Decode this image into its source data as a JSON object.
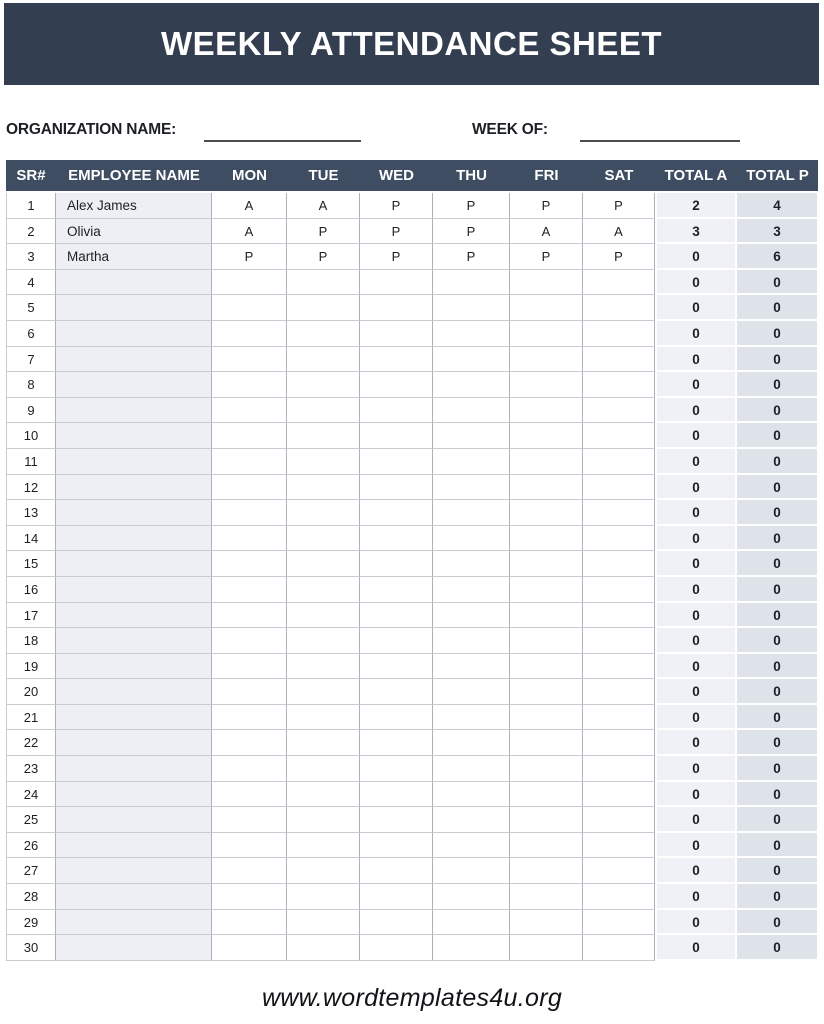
{
  "title": "WEEKLY ATTENDANCE SHEET",
  "form": {
    "org_label": "ORGANIZATION NAME:",
    "org_value": "",
    "week_label": "WEEK OF:",
    "week_value": ""
  },
  "table": {
    "headers": [
      "SR#",
      "EMPLOYEE NAME",
      "MON",
      "TUE",
      "WED",
      "THU",
      "FRI",
      "SAT",
      "TOTAL A",
      "TOTAL P"
    ],
    "rows": [
      {
        "sr": "1",
        "name": "Alex James",
        "days": [
          "A",
          "A",
          "P",
          "P",
          "P",
          "P"
        ],
        "total_a": "2",
        "total_p": "4"
      },
      {
        "sr": "2",
        "name": "Olivia",
        "days": [
          "A",
          "P",
          "P",
          "P",
          "A",
          "A"
        ],
        "total_a": "3",
        "total_p": "3"
      },
      {
        "sr": "3",
        "name": "Martha",
        "days": [
          "P",
          "P",
          "P",
          "P",
          "P",
          "P"
        ],
        "total_a": "0",
        "total_p": "6"
      },
      {
        "sr": "4",
        "name": "",
        "days": [
          "",
          "",
          "",
          "",
          "",
          ""
        ],
        "total_a": "0",
        "total_p": "0"
      },
      {
        "sr": "5",
        "name": "",
        "days": [
          "",
          "",
          "",
          "",
          "",
          ""
        ],
        "total_a": "0",
        "total_p": "0"
      },
      {
        "sr": "6",
        "name": "",
        "days": [
          "",
          "",
          "",
          "",
          "",
          ""
        ],
        "total_a": "0",
        "total_p": "0"
      },
      {
        "sr": "7",
        "name": "",
        "days": [
          "",
          "",
          "",
          "",
          "",
          ""
        ],
        "total_a": "0",
        "total_p": "0"
      },
      {
        "sr": "8",
        "name": "",
        "days": [
          "",
          "",
          "",
          "",
          "",
          ""
        ],
        "total_a": "0",
        "total_p": "0"
      },
      {
        "sr": "9",
        "name": "",
        "days": [
          "",
          "",
          "",
          "",
          "",
          ""
        ],
        "total_a": "0",
        "total_p": "0"
      },
      {
        "sr": "10",
        "name": "",
        "days": [
          "",
          "",
          "",
          "",
          "",
          ""
        ],
        "total_a": "0",
        "total_p": "0"
      },
      {
        "sr": "11",
        "name": "",
        "days": [
          "",
          "",
          "",
          "",
          "",
          ""
        ],
        "total_a": "0",
        "total_p": "0"
      },
      {
        "sr": "12",
        "name": "",
        "days": [
          "",
          "",
          "",
          "",
          "",
          ""
        ],
        "total_a": "0",
        "total_p": "0"
      },
      {
        "sr": "13",
        "name": "",
        "days": [
          "",
          "",
          "",
          "",
          "",
          ""
        ],
        "total_a": "0",
        "total_p": "0"
      },
      {
        "sr": "14",
        "name": "",
        "days": [
          "",
          "",
          "",
          "",
          "",
          ""
        ],
        "total_a": "0",
        "total_p": "0"
      },
      {
        "sr": "15",
        "name": "",
        "days": [
          "",
          "",
          "",
          "",
          "",
          ""
        ],
        "total_a": "0",
        "total_p": "0"
      },
      {
        "sr": "16",
        "name": "",
        "days": [
          "",
          "",
          "",
          "",
          "",
          ""
        ],
        "total_a": "0",
        "total_p": "0"
      },
      {
        "sr": "17",
        "name": "",
        "days": [
          "",
          "",
          "",
          "",
          "",
          ""
        ],
        "total_a": "0",
        "total_p": "0"
      },
      {
        "sr": "18",
        "name": "",
        "days": [
          "",
          "",
          "",
          "",
          "",
          ""
        ],
        "total_a": "0",
        "total_p": "0"
      },
      {
        "sr": "19",
        "name": "",
        "days": [
          "",
          "",
          "",
          "",
          "",
          ""
        ],
        "total_a": "0",
        "total_p": "0"
      },
      {
        "sr": "20",
        "name": "",
        "days": [
          "",
          "",
          "",
          "",
          "",
          ""
        ],
        "total_a": "0",
        "total_p": "0"
      },
      {
        "sr": "21",
        "name": "",
        "days": [
          "",
          "",
          "",
          "",
          "",
          ""
        ],
        "total_a": "0",
        "total_p": "0"
      },
      {
        "sr": "22",
        "name": "",
        "days": [
          "",
          "",
          "",
          "",
          "",
          ""
        ],
        "total_a": "0",
        "total_p": "0"
      },
      {
        "sr": "23",
        "name": "",
        "days": [
          "",
          "",
          "",
          "",
          "",
          ""
        ],
        "total_a": "0",
        "total_p": "0"
      },
      {
        "sr": "24",
        "name": "",
        "days": [
          "",
          "",
          "",
          "",
          "",
          ""
        ],
        "total_a": "0",
        "total_p": "0"
      },
      {
        "sr": "25",
        "name": "",
        "days": [
          "",
          "",
          "",
          "",
          "",
          ""
        ],
        "total_a": "0",
        "total_p": "0"
      },
      {
        "sr": "26",
        "name": "",
        "days": [
          "",
          "",
          "",
          "",
          "",
          ""
        ],
        "total_a": "0",
        "total_p": "0"
      },
      {
        "sr": "27",
        "name": "",
        "days": [
          "",
          "",
          "",
          "",
          "",
          ""
        ],
        "total_a": "0",
        "total_p": "0"
      },
      {
        "sr": "28",
        "name": "",
        "days": [
          "",
          "",
          "",
          "",
          "",
          ""
        ],
        "total_a": "0",
        "total_p": "0"
      },
      {
        "sr": "29",
        "name": "",
        "days": [
          "",
          "",
          "",
          "",
          "",
          ""
        ],
        "total_a": "0",
        "total_p": "0"
      },
      {
        "sr": "30",
        "name": "",
        "days": [
          "",
          "",
          "",
          "",
          "",
          ""
        ],
        "total_a": "0",
        "total_p": "0"
      }
    ]
  },
  "footer": {
    "url": "www.wordtemplates4u.org"
  },
  "colors": {
    "title-bar-bg": "#333e50",
    "table-header-bg": "#3f4d63",
    "header-text": "#ffffff",
    "name-col-bg": "#edeff4",
    "total-a-bg": "#eff1f6",
    "total-p-bg": "#dee3ea",
    "border-vertical": "#adb2ba",
    "border-horizontal": "#c9ccd3",
    "underline": "#4d4d4d",
    "text-dark": "#1c1f24"
  }
}
